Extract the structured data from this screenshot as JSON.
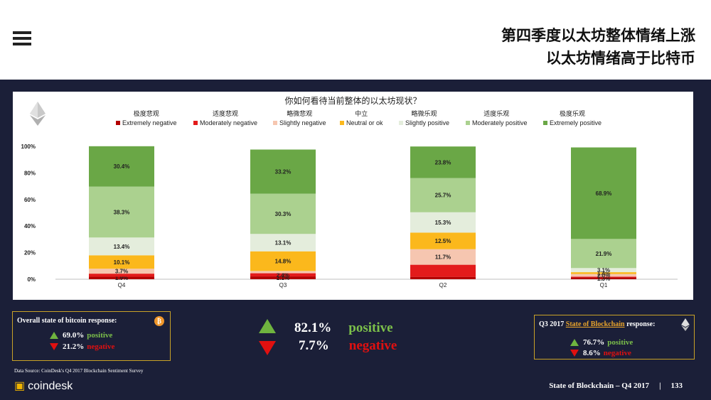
{
  "header": {
    "title_line1": "第四季度以太坊整体情绪上涨",
    "title_line2": "以太坊情绪高于比特币"
  },
  "chart_data": {
    "type": "bar",
    "stacked": true,
    "title": "你如何看待当前整体的以太坊现状？",
    "categories": [
      "Q4",
      "Q3",
      "Q2",
      "Q1"
    ],
    "y_ticks": [
      "0%",
      "20%",
      "40%",
      "60%",
      "80%",
      "100%"
    ],
    "ylim": [
      0,
      100
    ],
    "series": [
      {
        "name": "Extremely negative",
        "name_cn": "极度悲观",
        "color": "#b30000",
        "values": [
          1.9,
          2.1,
          1.8,
          1.3
        ]
      },
      {
        "name": "Moderately negative",
        "name_cn": "适度悲观",
        "color": "#e31b1b",
        "values": [
          2.3,
          2.4,
          9.1,
          0.6
        ]
      },
      {
        "name": "Slightly negative",
        "name_cn": "略微悲观",
        "color": "#f6c6b0",
        "values": [
          3.7,
          1.7,
          11.7,
          2.0
        ]
      },
      {
        "name": "Neutral or ok",
        "name_cn": "中立",
        "color": "#fbb81c",
        "values": [
          10.1,
          14.8,
          12.5,
          1.4
        ]
      },
      {
        "name": "Slightly positive",
        "name_cn": "略微乐观",
        "color": "#e4eddc",
        "values": [
          13.4,
          13.1,
          15.3,
          3.1
        ]
      },
      {
        "name": "Moderately positive",
        "name_cn": "适度乐观",
        "color": "#abd18f",
        "values": [
          38.3,
          30.3,
          25.7,
          21.9
        ]
      },
      {
        "name": "Extremely positive",
        "name_cn": "极度乐观",
        "color": "#6aa746",
        "values": [
          30.4,
          33.2,
          23.8,
          68.9
        ]
      }
    ],
    "labels": [
      [
        "1.9%",
        "",
        "3.7%",
        "10.1%",
        "13.4%",
        "38.3%",
        "30.4%"
      ],
      [
        "2.1%",
        "2.4%",
        "",
        "14.8%",
        "13.1%",
        "30.3%",
        "33.2%"
      ],
      [
        "",
        "",
        "11.7%",
        "12.5%",
        "15.3%",
        "25.7%",
        "23.8%"
      ],
      [
        "1.3%",
        "",
        "2.0%",
        "1.4%",
        "3.1%",
        "21.9%",
        "68.9%"
      ]
    ],
    "grid": false,
    "legend_position": "top"
  },
  "bitcoin_box": {
    "title": "Overall state of bitcoin response:",
    "positive_value": "69.0%",
    "positive_label": "positive",
    "negative_value": "21.2%",
    "negative_label": "negative",
    "icon": "bitcoin-icon"
  },
  "center_stats": {
    "positive_value": "82.1%",
    "positive_label": "positive",
    "negative_value": "7.7%",
    "negative_label": "negative"
  },
  "blockchain_box": {
    "title_prefix": "Q3 2017",
    "title_link": "State of Blockchain",
    "title_suffix": "response:",
    "positive_value": "76.7%",
    "positive_label": "positive",
    "negative_value": "8.6%",
    "negative_label": "negative",
    "icon": "ethereum-icon"
  },
  "footer": {
    "source": "Data Source: CoinDesk's Q4 2017 Blockchain Sentiment Survey",
    "brand": "coindesk",
    "deck_title": "State of Blockchain – Q4 2017",
    "separator": "|",
    "page_number": "133"
  }
}
